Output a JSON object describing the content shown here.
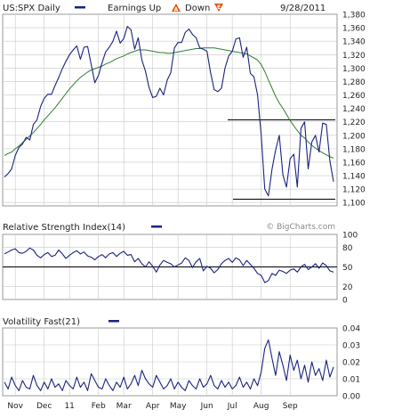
{
  "header": {
    "symbol_label": "US:SPX Daily",
    "earnings_label": "Earnings Up",
    "up_badge": "A",
    "down_label": "Down",
    "down_badge": "E",
    "date": "9/28/2011"
  },
  "watermark": "© BigCharts.com",
  "colors": {
    "price": "#1a237e",
    "moving_average": "#2e7d32",
    "level_lines": "#000000",
    "grid": "#c8c8c8",
    "earnings_badge": "#e65100"
  },
  "chart_data": [
    {
      "type": "line",
      "name": "price",
      "title": "",
      "series": [
        {
          "name": "US:SPX Daily",
          "values": [
            1138,
            1143,
            1150,
            1170,
            1182,
            1187,
            1197,
            1193,
            1216,
            1223,
            1243,
            1255,
            1261,
            1261,
            1274,
            1286,
            1299,
            1310,
            1320,
            1327,
            1333,
            1313,
            1331,
            1332,
            1305,
            1278,
            1289,
            1308,
            1324,
            1331,
            1340,
            1355,
            1337,
            1344,
            1362,
            1357,
            1328,
            1345,
            1312,
            1295,
            1271,
            1256,
            1258,
            1270,
            1260,
            1282,
            1293,
            1330,
            1338,
            1338,
            1353,
            1358,
            1350,
            1345,
            1330,
            1328,
            1325,
            1293,
            1268,
            1265,
            1270,
            1300,
            1318,
            1325,
            1343,
            1345,
            1316,
            1331,
            1292,
            1287,
            1260,
            1200,
            1120,
            1110,
            1150,
            1178,
            1200,
            1141,
            1123,
            1165,
            1172,
            1123,
            1210,
            1220,
            1150,
            1190,
            1200,
            1175,
            1218,
            1216,
            1162,
            1131
          ]
        },
        {
          "name": "50-day moving average",
          "values": [
            1170,
            1173,
            1175,
            1180,
            1184,
            1189,
            1194,
            1199,
            1204,
            1210,
            1216,
            1223,
            1229,
            1235,
            1241,
            1248,
            1255,
            1262,
            1269,
            1275,
            1281,
            1286,
            1290,
            1294,
            1297,
            1299,
            1301,
            1303,
            1306,
            1308,
            1311,
            1314,
            1316,
            1318,
            1321,
            1323,
            1325,
            1327,
            1327,
            1327,
            1326,
            1325,
            1324,
            1323,
            1323,
            1322,
            1322,
            1323,
            1324,
            1325,
            1326,
            1327,
            1328,
            1329,
            1329,
            1330,
            1330,
            1330,
            1330,
            1329,
            1328,
            1327,
            1326,
            1325,
            1324,
            1323,
            1322,
            1321,
            1318,
            1315,
            1312,
            1305,
            1295,
            1282,
            1270,
            1258,
            1248,
            1240,
            1231,
            1222,
            1214,
            1207,
            1200,
            1196,
            1190,
            1185,
            1181,
            1177,
            1174,
            1171,
            1168,
            1166
          ]
        }
      ],
      "levels": [
        1223,
        1105
      ],
      "ylim": [
        1095,
        1380
      ],
      "y_ticks": [
        "1,100",
        "1,120",
        "1,140",
        "1,160",
        "1,180",
        "1,200",
        "1,220",
        "1,240",
        "1,260",
        "1,280",
        "1,300",
        "1,320",
        "1,340",
        "1,360",
        "1,380"
      ],
      "grid": true,
      "legend": "top-left"
    },
    {
      "type": "line",
      "name": "rsi",
      "title": "Relative Strength Index(14)",
      "series": [
        {
          "name": "RSI(14)",
          "values": [
            70,
            73,
            76,
            78,
            72,
            71,
            74,
            79,
            76,
            68,
            64,
            69,
            72,
            66,
            68,
            76,
            70,
            63,
            68,
            72,
            75,
            70,
            73,
            67,
            65,
            61,
            66,
            69,
            64,
            70,
            72,
            66,
            71,
            74,
            68,
            69,
            58,
            63,
            55,
            50,
            58,
            51,
            42,
            53,
            60,
            57,
            55,
            50,
            53,
            56,
            64,
            60,
            49,
            58,
            63,
            44,
            51,
            48,
            41,
            46,
            55,
            60,
            63,
            57,
            64,
            61,
            52,
            60,
            54,
            48,
            40,
            37,
            26,
            29,
            40,
            37,
            45,
            43,
            40,
            45,
            47,
            42,
            50,
            54,
            46,
            50,
            55,
            48,
            56,
            52,
            44,
            42
          ]
        }
      ],
      "ylim": [
        0,
        100
      ],
      "y_ticks": [
        "0",
        "20",
        "50",
        "80",
        "100"
      ],
      "reference_line": 50,
      "grid": true
    },
    {
      "type": "line",
      "name": "volatility",
      "title": "Volatility Fast(21)",
      "series": [
        {
          "name": "Volatility Fast(21)",
          "values": [
            0.008,
            0.004,
            0.011,
            0.006,
            0.003,
            0.009,
            0.005,
            0.004,
            0.012,
            0.006,
            0.003,
            0.008,
            0.004,
            0.01,
            0.005,
            0.007,
            0.003,
            0.009,
            0.006,
            0.004,
            0.011,
            0.005,
            0.008,
            0.003,
            0.013,
            0.009,
            0.005,
            0.004,
            0.01,
            0.006,
            0.003,
            0.008,
            0.005,
            0.011,
            0.004,
            0.007,
            0.012,
            0.006,
            0.015,
            0.01,
            0.007,
            0.005,
            0.012,
            0.008,
            0.004,
            0.006,
            0.01,
            0.004,
            0.008,
            0.005,
            0.003,
            0.009,
            0.006,
            0.004,
            0.01,
            0.005,
            0.007,
            0.012,
            0.006,
            0.004,
            0.009,
            0.005,
            0.008,
            0.004,
            0.006,
            0.011,
            0.005,
            0.008,
            0.004,
            0.01,
            0.006,
            0.014,
            0.028,
            0.033,
            0.022,
            0.012,
            0.026,
            0.018,
            0.009,
            0.024,
            0.015,
            0.021,
            0.01,
            0.018,
            0.008,
            0.02,
            0.012,
            0.016,
            0.009,
            0.021,
            0.011,
            0.017
          ]
        }
      ],
      "ylim": [
        0,
        0.04
      ],
      "y_ticks": [
        "0.00",
        "0.01",
        "0.02",
        "0.03",
        "0.04"
      ],
      "grid": true
    }
  ],
  "x_axis": {
    "ticks": [
      {
        "label": "Nov",
        "index": 3
      },
      {
        "label": "Dec",
        "index": 11
      },
      {
        "label": "11",
        "index": 18
      },
      {
        "label": "Feb",
        "index": 26
      },
      {
        "label": "Mar",
        "index": 33
      },
      {
        "label": "Apr",
        "index": 41
      },
      {
        "label": "May",
        "index": 48
      },
      {
        "label": "Jun",
        "index": 56
      },
      {
        "label": "Jul",
        "index": 63
      },
      {
        "label": "Aug",
        "index": 71
      },
      {
        "label": "Sep",
        "index": 79
      }
    ]
  }
}
